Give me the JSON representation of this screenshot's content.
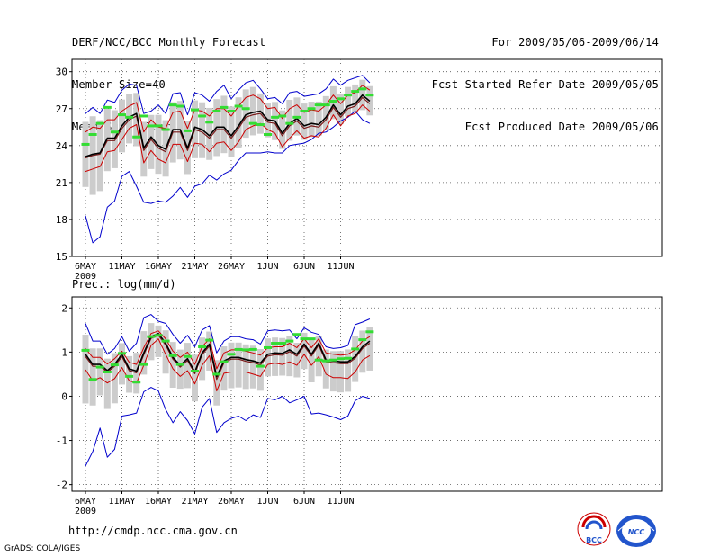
{
  "header": {
    "left": [
      "DERF/NCC/BCC Monthly Forecast",
      "Member Size=40",
      "Mean Surf. Temp.: °C"
    ],
    "right": [
      "For 2009/05/06-2009/06/14",
      "Fcst Started Refer Date 2009/05/05",
      "Fcst Produced Date 2009/05/06"
    ]
  },
  "precip_label": "Prec.: log(mm/d)",
  "url": "http://cmdp.ncc.cma.gov.cn",
  "footer": "GrADS: COLA/IGES",
  "logos": {
    "bcc": "BCC",
    "ncc": "NCC"
  },
  "colors": {
    "mean": "#000000",
    "ci": "#cc0000",
    "envelope": "#0000cc",
    "obs": "#33dd33",
    "box": "#cccccc",
    "grid": "#555555"
  },
  "chart_data": [
    {
      "type": "line",
      "title": "Mean Surf. Temp.: °C",
      "x_tick_labels": [
        "6MAY",
        "11MAY",
        "16MAY",
        "21MAY",
        "26MAY",
        "1JUN",
        "6JUN",
        "11JUN"
      ],
      "year_label": "2009",
      "ylim": [
        15,
        31
      ],
      "yticks": [
        15,
        18,
        21,
        24,
        27,
        30
      ],
      "days": 40,
      "series": [
        {
          "name": "ensemble-mean",
          "values": [
            23.1,
            23.3,
            23.4,
            24.6,
            24.6,
            25.6,
            26.3,
            26.6,
            23.8,
            24.7,
            24.0,
            23.7,
            25.3,
            25.3,
            23.8,
            25.5,
            25.3,
            24.8,
            25.5,
            25.5,
            24.8,
            25.6,
            26.5,
            26.7,
            26.8,
            26.1,
            26.0,
            25.0,
            25.8,
            26.2,
            25.6,
            25.8,
            25.7,
            26.3,
            27.3,
            26.5,
            27.2,
            27.4,
            28.1,
            27.6
          ]
        },
        {
          "name": "mean-alt",
          "values": [
            23.0,
            23.2,
            23.3,
            24.4,
            24.4,
            25.4,
            26.1,
            26.4,
            23.6,
            24.5,
            23.8,
            23.5,
            25.1,
            25.1,
            23.6,
            25.3,
            25.1,
            24.6,
            25.3,
            25.3,
            24.6,
            25.4,
            26.3,
            26.5,
            26.6,
            25.9,
            25.8,
            24.8,
            25.6,
            26.0,
            25.4,
            25.6,
            25.5,
            26.1,
            27.1,
            26.3,
            27.0,
            27.2,
            27.9,
            27.4
          ]
        },
        {
          "name": "upper-ci",
          "values": [
            25.1,
            25.5,
            25.4,
            26.1,
            26.1,
            26.8,
            27.2,
            27.5,
            25.1,
            26.1,
            25.5,
            25.4,
            26.7,
            26.8,
            25.4,
            26.9,
            26.8,
            26.4,
            27.0,
            27.0,
            26.4,
            27.2,
            27.9,
            28.1,
            27.8,
            27.0,
            27.1,
            26.2,
            27.0,
            27.3,
            26.7,
            26.9,
            26.8,
            27.3,
            28.1,
            27.4,
            28.1,
            28.3,
            28.9,
            28.5
          ]
        },
        {
          "name": "lower-ci",
          "values": [
            21.9,
            22.1,
            22.3,
            23.5,
            23.6,
            24.5,
            25.4,
            25.7,
            22.6,
            23.6,
            22.9,
            22.6,
            24.1,
            24.1,
            22.7,
            24.2,
            24.1,
            23.5,
            24.2,
            24.3,
            23.6,
            24.3,
            25.3,
            25.6,
            25.8,
            25.3,
            25.0,
            23.9,
            24.6,
            25.2,
            24.6,
            24.8,
            24.7,
            25.4,
            26.5,
            25.6,
            26.4,
            26.6,
            27.3,
            26.8
          ]
        },
        {
          "name": "ensemble-max",
          "values": [
            26.6,
            27.1,
            26.6,
            27.7,
            27.5,
            28.5,
            29.0,
            28.9,
            26.6,
            26.8,
            27.3,
            26.6,
            28.2,
            28.3,
            26.5,
            28.3,
            28.1,
            27.6,
            28.4,
            28.9,
            27.8,
            28.5,
            29.1,
            29.3,
            28.6,
            27.8,
            27.9,
            27.4,
            28.3,
            28.4,
            28.0,
            28.1,
            28.2,
            28.6,
            29.4,
            28.9,
            29.3,
            29.5,
            29.7,
            29.1
          ]
        },
        {
          "name": "ensemble-min",
          "values": [
            18.3,
            16.1,
            16.6,
            19.0,
            19.5,
            21.5,
            21.9,
            20.7,
            19.4,
            19.3,
            19.5,
            19.4,
            19.9,
            20.6,
            19.8,
            20.7,
            20.9,
            21.6,
            21.2,
            21.7,
            22.0,
            22.8,
            23.4,
            23.4,
            23.4,
            23.5,
            23.4,
            23.4,
            24.0,
            24.1,
            24.2,
            24.5,
            25.0,
            25.1,
            25.5,
            26.0,
            26.3,
            26.8,
            26.1,
            25.8
          ]
        },
        {
          "name": "observed",
          "values": [
            24.1,
            24.9,
            25.8,
            27.1,
            25.1,
            26.5,
            26.3,
            24.7,
            26.4,
            25.6,
            25.6,
            25.3,
            27.3,
            27.2,
            25.2,
            26.9,
            26.4,
            25.9,
            26.8,
            27.1,
            26.8,
            27.2,
            27.0,
            25.8,
            25.7,
            24.9,
            26.3,
            26.4,
            25.8,
            26.3,
            26.8,
            27.0,
            27.3,
            27.3,
            27.6,
            27.8,
            28.1,
            28.4,
            28.6,
            28.1
          ]
        }
      ]
    },
    {
      "type": "line",
      "title": "Prec.: log(mm/d)",
      "x_tick_labels": [
        "6MAY",
        "11MAY",
        "16MAY",
        "21MAY",
        "26MAY",
        "1JUN",
        "6JUN",
        "11JUN"
      ],
      "year_label": "2009",
      "ylim": [
        -2,
        2.1
      ],
      "yticks": [
        -2,
        -1,
        0,
        1,
        2
      ],
      "days": 40,
      "series": [
        {
          "name": "ensemble-mean",
          "values": [
            0.95,
            0.72,
            0.72,
            0.58,
            0.72,
            0.95,
            0.62,
            0.57,
            0.98,
            1.35,
            1.42,
            1.2,
            0.88,
            0.7,
            0.85,
            0.55,
            0.98,
            1.18,
            0.45,
            0.8,
            0.88,
            0.88,
            0.83,
            0.8,
            0.75,
            0.95,
            0.98,
            0.97,
            1.05,
            0.95,
            1.18,
            0.95,
            1.2,
            0.82,
            0.8,
            0.78,
            0.78,
            0.9,
            1.12,
            1.25
          ]
        },
        {
          "name": "mean-alt",
          "values": [
            0.9,
            0.68,
            0.68,
            0.54,
            0.68,
            0.9,
            0.58,
            0.53,
            0.94,
            1.31,
            1.38,
            1.16,
            0.84,
            0.66,
            0.81,
            0.51,
            0.94,
            1.14,
            0.38,
            0.76,
            0.84,
            0.84,
            0.79,
            0.76,
            0.71,
            0.91,
            0.94,
            0.93,
            1.01,
            0.91,
            1.14,
            0.91,
            1.16,
            0.78,
            0.76,
            0.74,
            0.74,
            0.86,
            1.08,
            1.2
          ]
        },
        {
          "name": "upper-ci",
          "values": [
            1.08,
            0.88,
            0.88,
            0.73,
            0.85,
            1.02,
            0.77,
            0.72,
            1.1,
            1.42,
            1.48,
            1.3,
            1.02,
            0.88,
            1.0,
            0.72,
            1.12,
            1.3,
            0.62,
            0.98,
            1.05,
            1.05,
            1.02,
            0.98,
            0.93,
            1.1,
            1.12,
            1.12,
            1.2,
            1.1,
            1.3,
            1.1,
            1.3,
            0.98,
            0.95,
            0.93,
            0.95,
            1.05,
            1.25,
            1.35
          ]
        },
        {
          "name": "lower-ci",
          "values": [
            0.6,
            0.35,
            0.42,
            0.3,
            0.4,
            0.65,
            0.35,
            0.3,
            0.7,
            1.15,
            1.3,
            0.95,
            0.62,
            0.45,
            0.58,
            0.28,
            0.7,
            0.92,
            0.12,
            0.52,
            0.55,
            0.55,
            0.55,
            0.5,
            0.45,
            0.72,
            0.75,
            0.72,
            0.78,
            0.7,
            0.95,
            0.7,
            0.9,
            0.5,
            0.42,
            0.42,
            0.4,
            0.55,
            0.82,
            0.92
          ]
        },
        {
          "name": "ensemble-max",
          "values": [
            1.65,
            1.25,
            1.25,
            0.95,
            1.08,
            1.35,
            1.02,
            1.2,
            1.78,
            1.85,
            1.7,
            1.65,
            1.4,
            1.2,
            1.38,
            1.12,
            1.5,
            1.6,
            0.98,
            1.25,
            1.35,
            1.35,
            1.3,
            1.28,
            1.18,
            1.48,
            1.5,
            1.48,
            1.5,
            1.3,
            1.55,
            1.45,
            1.4,
            1.12,
            1.08,
            1.1,
            1.15,
            1.62,
            1.68,
            1.75
          ]
        },
        {
          "name": "ensemble-min",
          "values": [
            -1.58,
            -1.25,
            -0.72,
            -1.38,
            -1.2,
            -0.45,
            -0.42,
            -0.38,
            0.1,
            0.2,
            0.12,
            -0.3,
            -0.6,
            -0.35,
            -0.55,
            -0.85,
            -0.25,
            -0.05,
            -0.82,
            -0.6,
            -0.5,
            -0.45,
            -0.55,
            -0.42,
            -0.48,
            -0.05,
            -0.08,
            0.0,
            -0.15,
            -0.08,
            0.0,
            -0.4,
            -0.38,
            -0.42,
            -0.47,
            -0.53,
            -0.45,
            -0.1,
            0.0,
            -0.05
          ]
        },
        {
          "name": "observed",
          "values": [
            1.04,
            0.38,
            0.66,
            0.55,
            0.71,
            0.97,
            0.45,
            0.32,
            0.72,
            1.35,
            1.38,
            1.25,
            0.92,
            0.72,
            0.9,
            0.57,
            1.12,
            1.27,
            0.5,
            0.78,
            0.95,
            1.06,
            1.05,
            1.06,
            0.68,
            1.1,
            1.2,
            1.2,
            1.25,
            1.4,
            1.3,
            1.3,
            0.82,
            0.8,
            0.82,
            0.85,
            0.86,
            1.07,
            1.28,
            1.46
          ]
        }
      ]
    }
  ]
}
